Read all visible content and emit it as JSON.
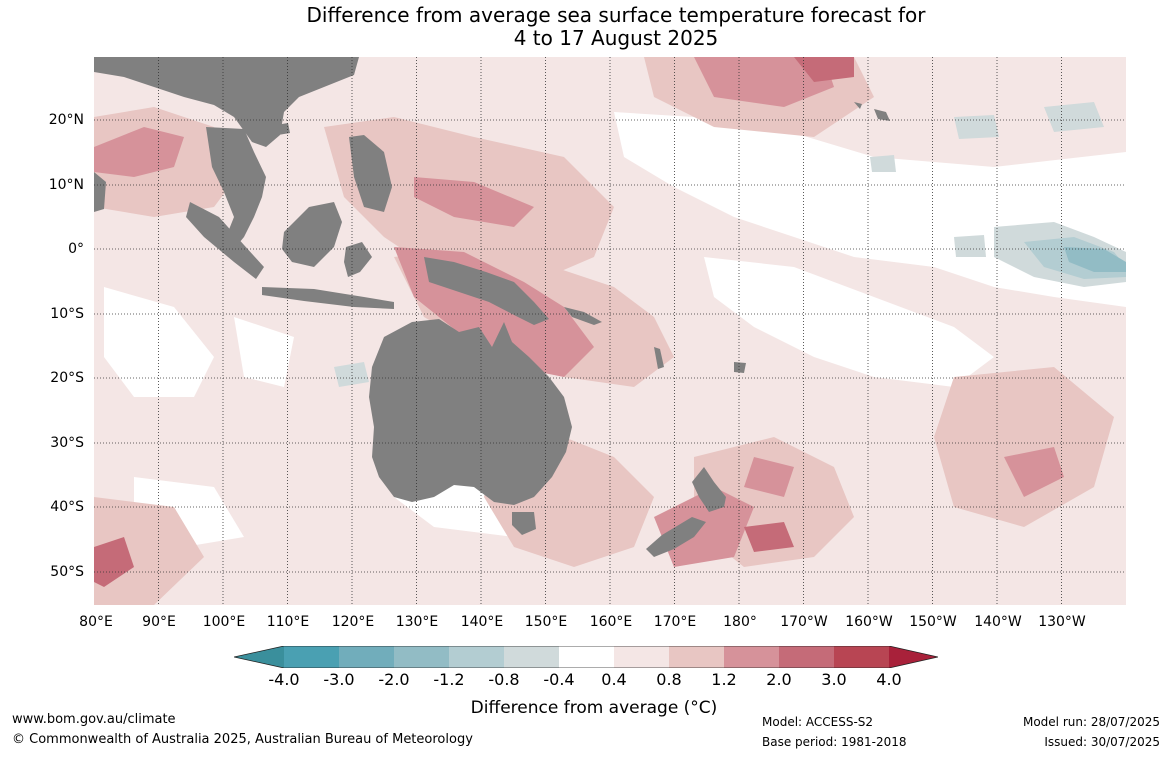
{
  "title_line1": "Difference from average sea surface temperature forecast for",
  "title_line2": "4 to 17 August 2025",
  "latitude_labels": [
    "20°N",
    "10°N",
    "0°",
    "10°S",
    "20°S",
    "30°S",
    "40°S",
    "50°S"
  ],
  "longitude_labels": [
    "80°E",
    "90°E",
    "100°E",
    "110°E",
    "120°E",
    "130°E",
    "140°E",
    "150°E",
    "160°E",
    "170°E",
    "180°",
    "170°W",
    "160°W",
    "150°W",
    "140°W",
    "130°W"
  ],
  "colorbar": {
    "ticks": [
      "-4.0",
      "-3.0",
      "-2.0",
      "-1.2",
      "-0.8",
      "-0.4",
      "0.4",
      "0.8",
      "1.2",
      "2.0",
      "3.0",
      "4.0"
    ],
    "colors": [
      "#3a8f9c",
      "#4aa0b2",
      "#71adbb",
      "#92bcc5",
      "#b3cdd2",
      "#d0dadb",
      "#ffffff",
      "#f4e6e5",
      "#e8c6c3",
      "#d6929a",
      "#c56b78",
      "#b84553",
      "#a8213a"
    ],
    "label": "Difference from average (°C)"
  },
  "land_color": "#808080",
  "footer": {
    "website": "www.bom.gov.au/climate",
    "copyright": "© Commonwealth of Australia 2025, Australian Bureau of Meteorology",
    "model": "Model: ACCESS-S2",
    "base_period": "Base period: 1981-2018",
    "model_run": "Model run: 28/07/2025",
    "issued": "Issued: 30/07/2025"
  }
}
